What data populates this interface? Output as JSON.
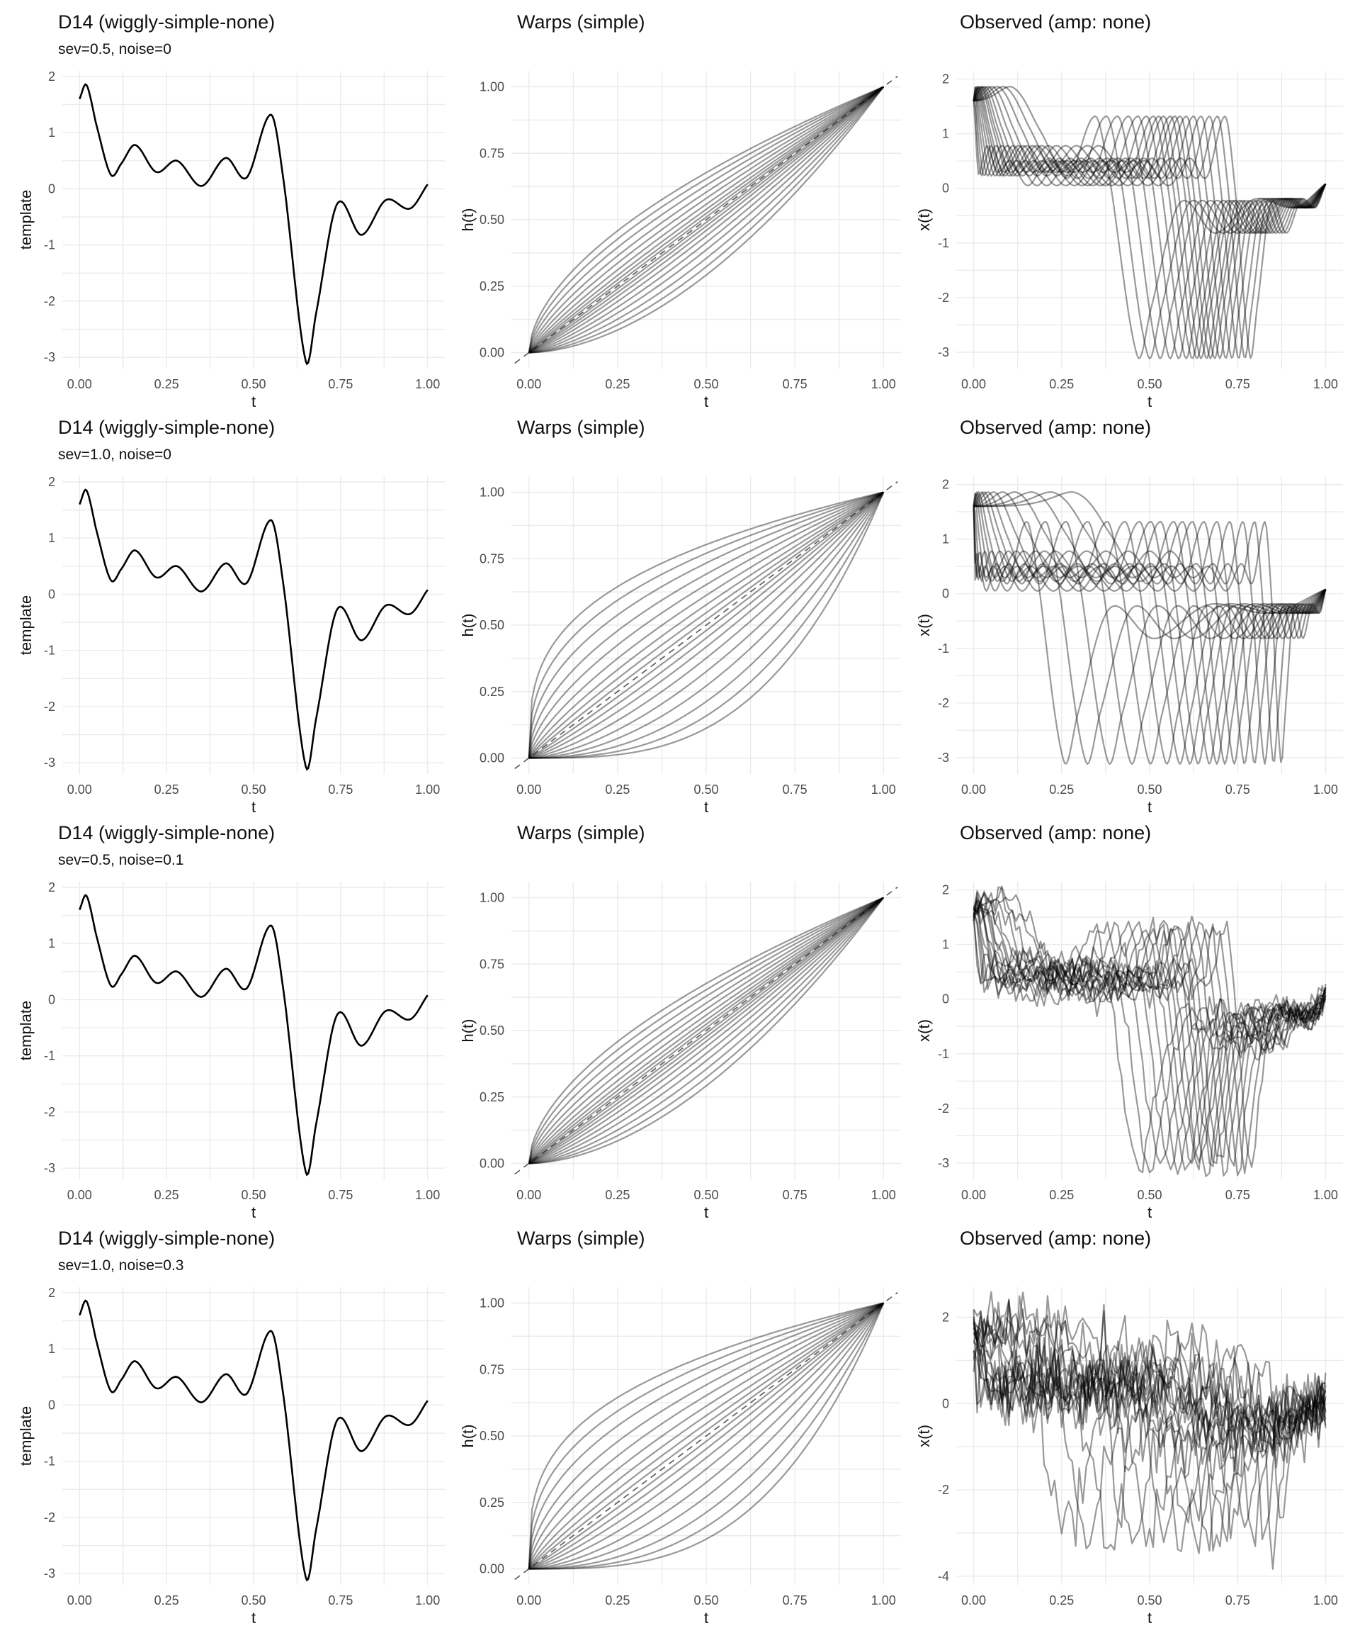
{
  "colors": {
    "template_line": "#000000",
    "curve_line": "rgba(0,0,0,0.4)",
    "grid": "#ebebeb",
    "reference_line": "#555555"
  },
  "rows": [
    {
      "template": {
        "title": "D14 (wiggly-simple-none)",
        "subtitle": "sev=0.5, noise=0"
      },
      "warps": {
        "title": "Warps (simple)"
      },
      "observed": {
        "title": "Observed (amp: none)"
      },
      "severity": 0.5,
      "noise": 0
    },
    {
      "template": {
        "title": "D14 (wiggly-simple-none)",
        "subtitle": "sev=1.0, noise=0"
      },
      "warps": {
        "title": "Warps (simple)"
      },
      "observed": {
        "title": "Observed (amp: none)"
      },
      "severity": 1.0,
      "noise": 0
    },
    {
      "template": {
        "title": "D14 (wiggly-simple-none)",
        "subtitle": "sev=0.5, noise=0.1"
      },
      "warps": {
        "title": "Warps (simple)"
      },
      "observed": {
        "title": "Observed (amp: none)"
      },
      "severity": 0.5,
      "noise": 0.1
    },
    {
      "template": {
        "title": "D14 (wiggly-simple-none)",
        "subtitle": "sev=1.0, noise=0.3"
      },
      "warps": {
        "title": "Warps (simple)"
      },
      "observed": {
        "title": "Observed (amp: none)"
      },
      "severity": 1.0,
      "noise": 0.3
    }
  ],
  "chart_data": [
    {
      "panel": "template",
      "type": "line",
      "title": "D14 (wiggly-simple-none)",
      "xlabel": "t",
      "ylabel": "template",
      "xlim": [
        0,
        1
      ],
      "ylim": [
        -3.2,
        2.1
      ],
      "xticks": [
        "0.00",
        "0.25",
        "0.50",
        "0.75",
        "1.00"
      ],
      "yticks": [
        "2",
        "1",
        "0",
        "-1",
        "-2",
        "-3"
      ],
      "grid": true,
      "x": [
        0,
        0.02,
        0.05,
        0.09,
        0.12,
        0.16,
        0.22,
        0.28,
        0.35,
        0.42,
        0.48,
        0.55,
        0.585,
        0.65,
        0.68,
        0.74,
        0.81,
        0.88,
        0.95,
        1.0
      ],
      "values": [
        1.6,
        1.85,
        1.1,
        0.25,
        0.45,
        0.78,
        0.3,
        0.5,
        0.05,
        0.55,
        0.2,
        1.32,
        0.2,
        -3.07,
        -2.2,
        -0.27,
        -0.82,
        -0.2,
        -0.35,
        0.08
      ]
    },
    {
      "panel": "warps",
      "type": "line",
      "title": "Warps (simple)",
      "xlabel": "t",
      "ylabel": "h(t)",
      "xlim": [
        0,
        1
      ],
      "ylim": [
        0,
        1
      ],
      "xticks": [
        "0.00",
        "0.25",
        "0.50",
        "0.75",
        "1.00"
      ],
      "yticks": [
        "1.00",
        "0.75",
        "0.50",
        "0.25",
        "0.00"
      ],
      "grid": true,
      "reference_line": "identity (dashed)",
      "series_rule": "h(t) = t^(e^k), one curve per warp, k from the list below",
      "curve_exponent_log": [
        -1.0,
        -0.85,
        -0.7,
        -0.55,
        -0.42,
        -0.3,
        -0.2,
        -0.12,
        -0.05,
        0.05,
        0.12,
        0.2,
        0.3,
        0.42,
        0.55,
        0.7,
        0.85,
        1.0
      ]
    },
    {
      "panel": "observed",
      "type": "line",
      "title": "Observed (amp: none)",
      "xlabel": "t",
      "ylabel": "x(t)",
      "xlim": [
        0,
        1
      ],
      "xticks": [
        "0.00",
        "0.25",
        "0.50",
        "0.75",
        "1.00"
      ],
      "yticks_rows_1_3": [
        "2",
        "1",
        "0",
        "-1",
        "-2",
        "-3"
      ],
      "yticks_row_4": [
        "2",
        "0",
        "-2",
        "-4"
      ],
      "ylim_rows_1_3": [
        -3.3,
        2.15
      ],
      "ylim_row_4": [
        -4.2,
        2.7
      ],
      "grid": true,
      "series_rule": "x(t) = template(h(t)) + noise, one curve per warp"
    }
  ]
}
